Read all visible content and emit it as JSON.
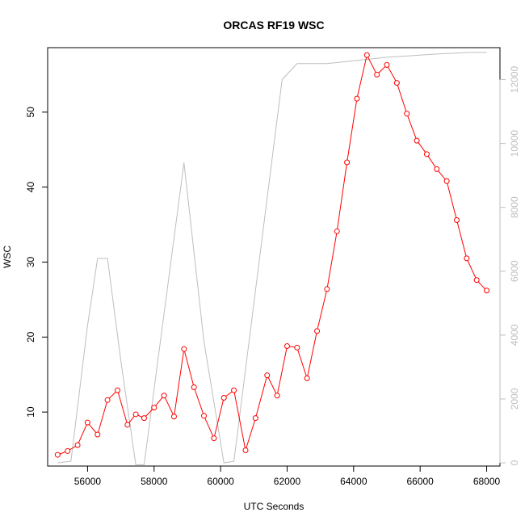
{
  "chart_data": {
    "type": "line",
    "title": "ORCAS RF19 WSC",
    "xlabel": "UTC Seconds",
    "ylabel": "WSC",
    "xlim": [
      54800,
      68400
    ],
    "ylim": [
      2.8,
      58.6
    ],
    "y2lim": [
      -100,
      13000
    ],
    "grid": false,
    "x_ticks": [
      56000,
      58000,
      60000,
      62000,
      64000,
      66000,
      68000
    ],
    "y_ticks": [
      10,
      20,
      30,
      40,
      50
    ],
    "y2_ticks": [
      0,
      2000,
      4000,
      6000,
      8000,
      10000,
      12000
    ],
    "colors": {
      "wsc": "#ff0000",
      "altitude": "#bebebe"
    },
    "series": [
      {
        "name": "",
        "axis": "left",
        "style": "line+points",
        "color": "#ff0000",
        "x": [
          55100,
          55400,
          55700,
          56000,
          56300,
          56600,
          56900,
          57200,
          57450,
          57700,
          58000,
          58300,
          58600,
          58900,
          59200,
          59500,
          59800,
          60100,
          60400,
          60750,
          61050,
          61400,
          61700,
          62000,
          62300,
          62600,
          62900,
          63200,
          63500,
          63800,
          64100,
          64400,
          64700,
          65000,
          65300,
          65600,
          65900,
          66200,
          66500,
          66800,
          67100,
          67400,
          67700,
          68000
        ],
        "y": [
          4.3,
          4.8,
          5.6,
          8.6,
          7.0,
          11.6,
          12.9,
          8.3,
          9.7,
          9.2,
          10.6,
          12.2,
          9.4,
          18.4,
          13.3,
          9.5,
          6.5,
          11.9,
          12.9,
          4.9,
          9.2,
          14.9,
          12.2,
          18.8,
          18.6,
          14.5,
          20.8,
          26.4,
          34.1,
          43.3,
          51.8,
          57.6,
          55.0,
          56.3,
          53.9,
          49.8,
          46.2,
          44.4,
          42.4,
          40.8,
          35.6,
          30.5,
          27.6,
          26.2
        ]
      },
      {
        "name": "",
        "axis": "right",
        "style": "line",
        "color": "#bebebe",
        "x": [
          55100,
          55500,
          56000,
          56300,
          56600,
          57000,
          57450,
          57700,
          58900,
          59500,
          60100,
          60400,
          61850,
          62300,
          62500,
          63200,
          65000,
          66500,
          67500,
          68000
        ],
        "y": [
          0,
          50,
          4300,
          6400,
          6400,
          3200,
          -60,
          -60,
          9400,
          3800,
          0,
          50,
          12000,
          12500,
          12500,
          12500,
          12700,
          12800,
          12850,
          12850
        ]
      }
    ]
  }
}
